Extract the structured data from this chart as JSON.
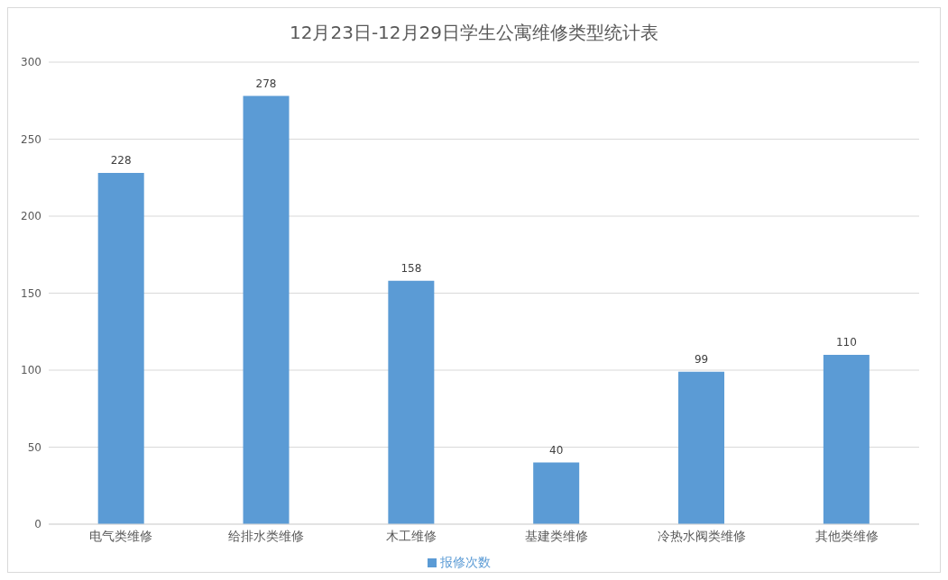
{
  "chart_data": {
    "type": "bar",
    "title": "12月23日-12月29日学生公寓维修类型统计表",
    "categories": [
      "电气类维修",
      "给排水类维修",
      "木工维修",
      "基建类维修",
      "冷热水阀类维修",
      "其他类维修"
    ],
    "series": [
      {
        "name": "报修次数",
        "color": "#5b9bd5",
        "values": [
          228,
          278,
          158,
          40,
          99,
          110
        ]
      }
    ],
    "ylim": [
      0,
      300
    ],
    "yticks": [
      0,
      50,
      100,
      150,
      200,
      250,
      300
    ],
    "grid": "y",
    "legend": "bottom",
    "data_labels": true
  }
}
